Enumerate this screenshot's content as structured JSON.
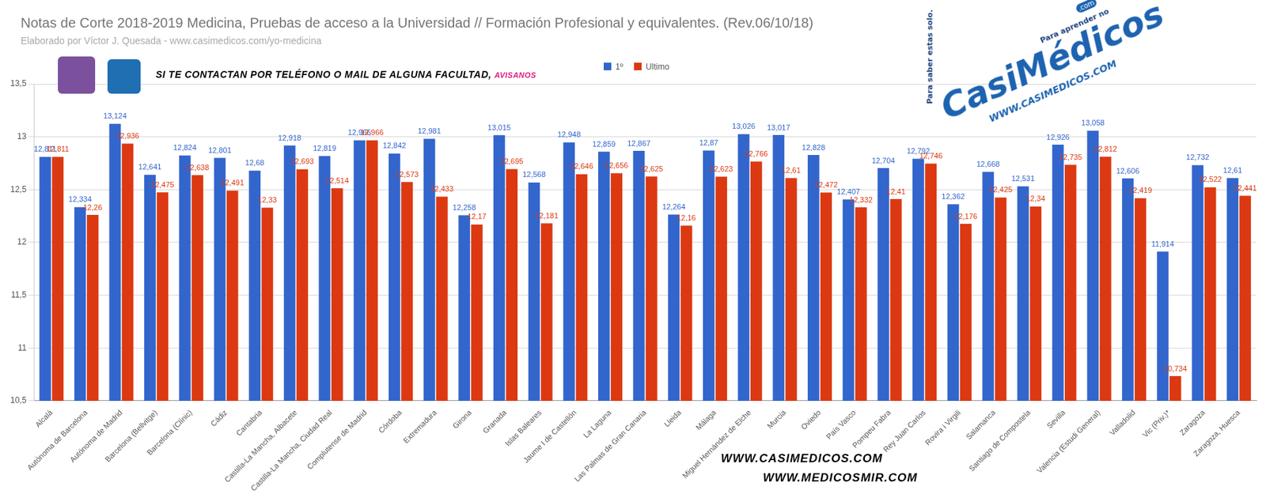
{
  "chart_data": {
    "type": "bar",
    "title": "Notas de Corte 2018-2019 Medicina, Pruebas de acceso a la Universidad // Formación Profesional y equivalentes. (Rev.06/10/18)",
    "subtitle": "Elaborado por Víctor J. Quesada - www.casimedicos.com/yo-medicina",
    "annotations": [
      "SI TE CONTACTAN POR TELÉFONO O MAIL DE ALGUNA FACULTAD,",
      "AVISANOS",
      "WWW.CASIMEDICOS.COM",
      "WWW.MEDICOSMIR.COM",
      "Para saber estas solo.",
      "CasiMédicos",
      "Para aprender no",
      "WWW.CASIMEDICOS.COM",
      ".com"
    ],
    "categories": [
      "Alcalá",
      "Autónoma de Barcelona",
      "Autónoma de Madrid",
      "Barcelona (Bellvitge)",
      "Barcelona (Clínic)",
      "Cádiz",
      "Cantabria",
      "Castilla-La Mancha, Albacete",
      "Castilla-La Mancha, Ciudad Real",
      "Complutense de Madrid",
      "Córdoba",
      "Extremadura",
      "Girona",
      "Granada",
      "Islas Baleares",
      "Jaume I de Castellón",
      "La Laguna",
      "Las Palmas de Gran Canaria",
      "Lleida",
      "Málaga",
      "Miguel Hernández de Elche",
      "Murcia",
      "Oviedo",
      "País Vasco",
      "Pompeu Fabra",
      "Rey Juan Carlos",
      "Rovira i Virgili",
      "Salamanca",
      "Santiago de Compostela",
      "Sevilla",
      "Valencia (Estudi General)",
      "Valladolid",
      "Vic (Priv.)*",
      "Zaragoza",
      "Zaragoza, Huesca"
    ],
    "series": [
      {
        "name": "1º",
        "color": "#3366cc",
        "values": [
          12.811,
          12.334,
          13.124,
          12.641,
          12.824,
          12.801,
          12.68,
          12.918,
          12.819,
          12.966,
          12.842,
          12.981,
          12.258,
          13.015,
          12.568,
          12.948,
          12.859,
          12.867,
          12.264,
          12.87,
          13.026,
          13.017,
          12.828,
          12.407,
          12.704,
          12.792,
          12.362,
          12.668,
          12.531,
          12.926,
          13.058,
          12.606,
          11.914,
          12.732,
          12.61
        ],
        "value_labels": [
          "12,811",
          "12,334",
          "13,124",
          "12,641",
          "12,824",
          "12,801",
          "12,68",
          "12,918",
          "12,819",
          "12,966",
          "12,842",
          "12,981",
          "12,258",
          "13,015",
          "12,568",
          "12,948",
          "12,859",
          "12,867",
          "12,264",
          "12,87",
          "13,026",
          "13,017",
          "12,828",
          "12,407",
          "12,704",
          "12,792",
          "12,362",
          "12,668",
          "12,531",
          "12,926",
          "13,058",
          "12,606",
          "11,914",
          "12,732",
          "12,61"
        ]
      },
      {
        "name": "Ultimo",
        "color": "#dc3912",
        "values": [
          12.811,
          12.26,
          12.936,
          12.475,
          12.638,
          12.491,
          12.33,
          12.693,
          12.514,
          12.966,
          12.573,
          12.433,
          12.17,
          12.695,
          12.181,
          12.646,
          12.656,
          12.625,
          12.16,
          12.623,
          12.766,
          12.61,
          12.472,
          12.332,
          12.41,
          12.746,
          12.176,
          12.425,
          12.34,
          12.735,
          12.812,
          12.419,
          10.734,
          12.522,
          12.441
        ],
        "value_labels": [
          "12,811",
          "12,26",
          "12,936",
          "12,475",
          "12,638",
          "12,491",
          "12,33",
          "12,693",
          "12,514",
          "12,966",
          "12,573",
          "12,433",
          "12,17",
          "12,695",
          "12,181",
          "12,646",
          "12,656",
          "12,625",
          "12,16",
          "12,623",
          "12,766",
          "12,61",
          "12,472",
          "12,332",
          "12,41",
          "12,746",
          "12,176",
          "12,425",
          "12,34",
          "12,735",
          "12,812",
          "12,419",
          "10,734",
          "12,522",
          "12,441"
        ]
      }
    ],
    "ylim": [
      10.5,
      13.5
    ],
    "yticks": [
      {
        "value": 10.5,
        "label": "10,5"
      },
      11,
      {
        "value": 11.5,
        "label": "11,5"
      },
      12,
      {
        "value": 12.5,
        "label": "12,5"
      },
      13,
      {
        "value": 13.5,
        "label": "13,5"
      }
    ],
    "grid": true,
    "legend": "top",
    "data_labels": true
  }
}
